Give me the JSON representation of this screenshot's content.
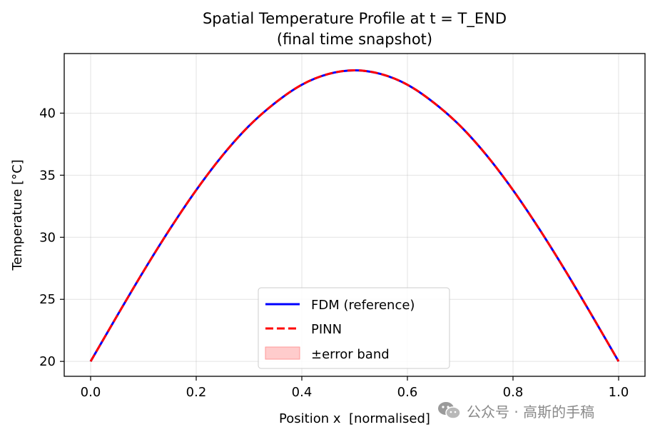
{
  "chart_data": {
    "type": "line",
    "title": "Spatial Temperature Profile at t = T_END",
    "subtitle": "(final time snapshot)",
    "xlabel": "Position x  [normalised]",
    "ylabel": "Temperature [°C]",
    "xlim": [
      -0.05,
      1.05
    ],
    "ylim": [
      18.8,
      44.8
    ],
    "xticks": [
      0.0,
      0.2,
      0.4,
      0.6,
      0.8,
      1.0
    ],
    "xtick_labels": [
      "0.0",
      "0.2",
      "0.4",
      "0.6",
      "0.8",
      "1.0"
    ],
    "yticks": [
      20,
      25,
      30,
      35,
      40
    ],
    "ytick_labels": [
      "20",
      "25",
      "30",
      "35",
      "40"
    ],
    "grid": true,
    "legend_position": "lower-center",
    "x": [
      0.0,
      0.05,
      0.1,
      0.15,
      0.2,
      0.25,
      0.3,
      0.35,
      0.4,
      0.45,
      0.5,
      0.55,
      0.6,
      0.65,
      0.7,
      0.75,
      0.8,
      0.85,
      0.9,
      0.95,
      1.0
    ],
    "series": [
      {
        "name": "FDM (reference)",
        "style": "solid",
        "color": "#0000ff",
        "values": [
          20.0,
          23.66,
          27.25,
          30.65,
          33.8,
          36.6,
          38.97,
          40.84,
          42.29,
          43.15,
          43.45,
          43.15,
          42.29,
          40.84,
          38.97,
          36.6,
          33.8,
          30.65,
          27.25,
          23.66,
          20.0
        ]
      },
      {
        "name": "PINN",
        "style": "dashed",
        "color": "#ff0000",
        "values": [
          20.0,
          23.66,
          27.25,
          30.65,
          33.8,
          36.6,
          38.97,
          40.84,
          42.29,
          43.15,
          43.45,
          43.15,
          42.29,
          40.84,
          38.97,
          36.6,
          33.8,
          30.65,
          27.25,
          23.66,
          20.0
        ]
      }
    ],
    "band": {
      "name": "±error band",
      "color": "#ffb3b3"
    }
  },
  "watermark": {
    "text": "公众号 · 高斯的手稿",
    "icon": "wechat-icon"
  }
}
